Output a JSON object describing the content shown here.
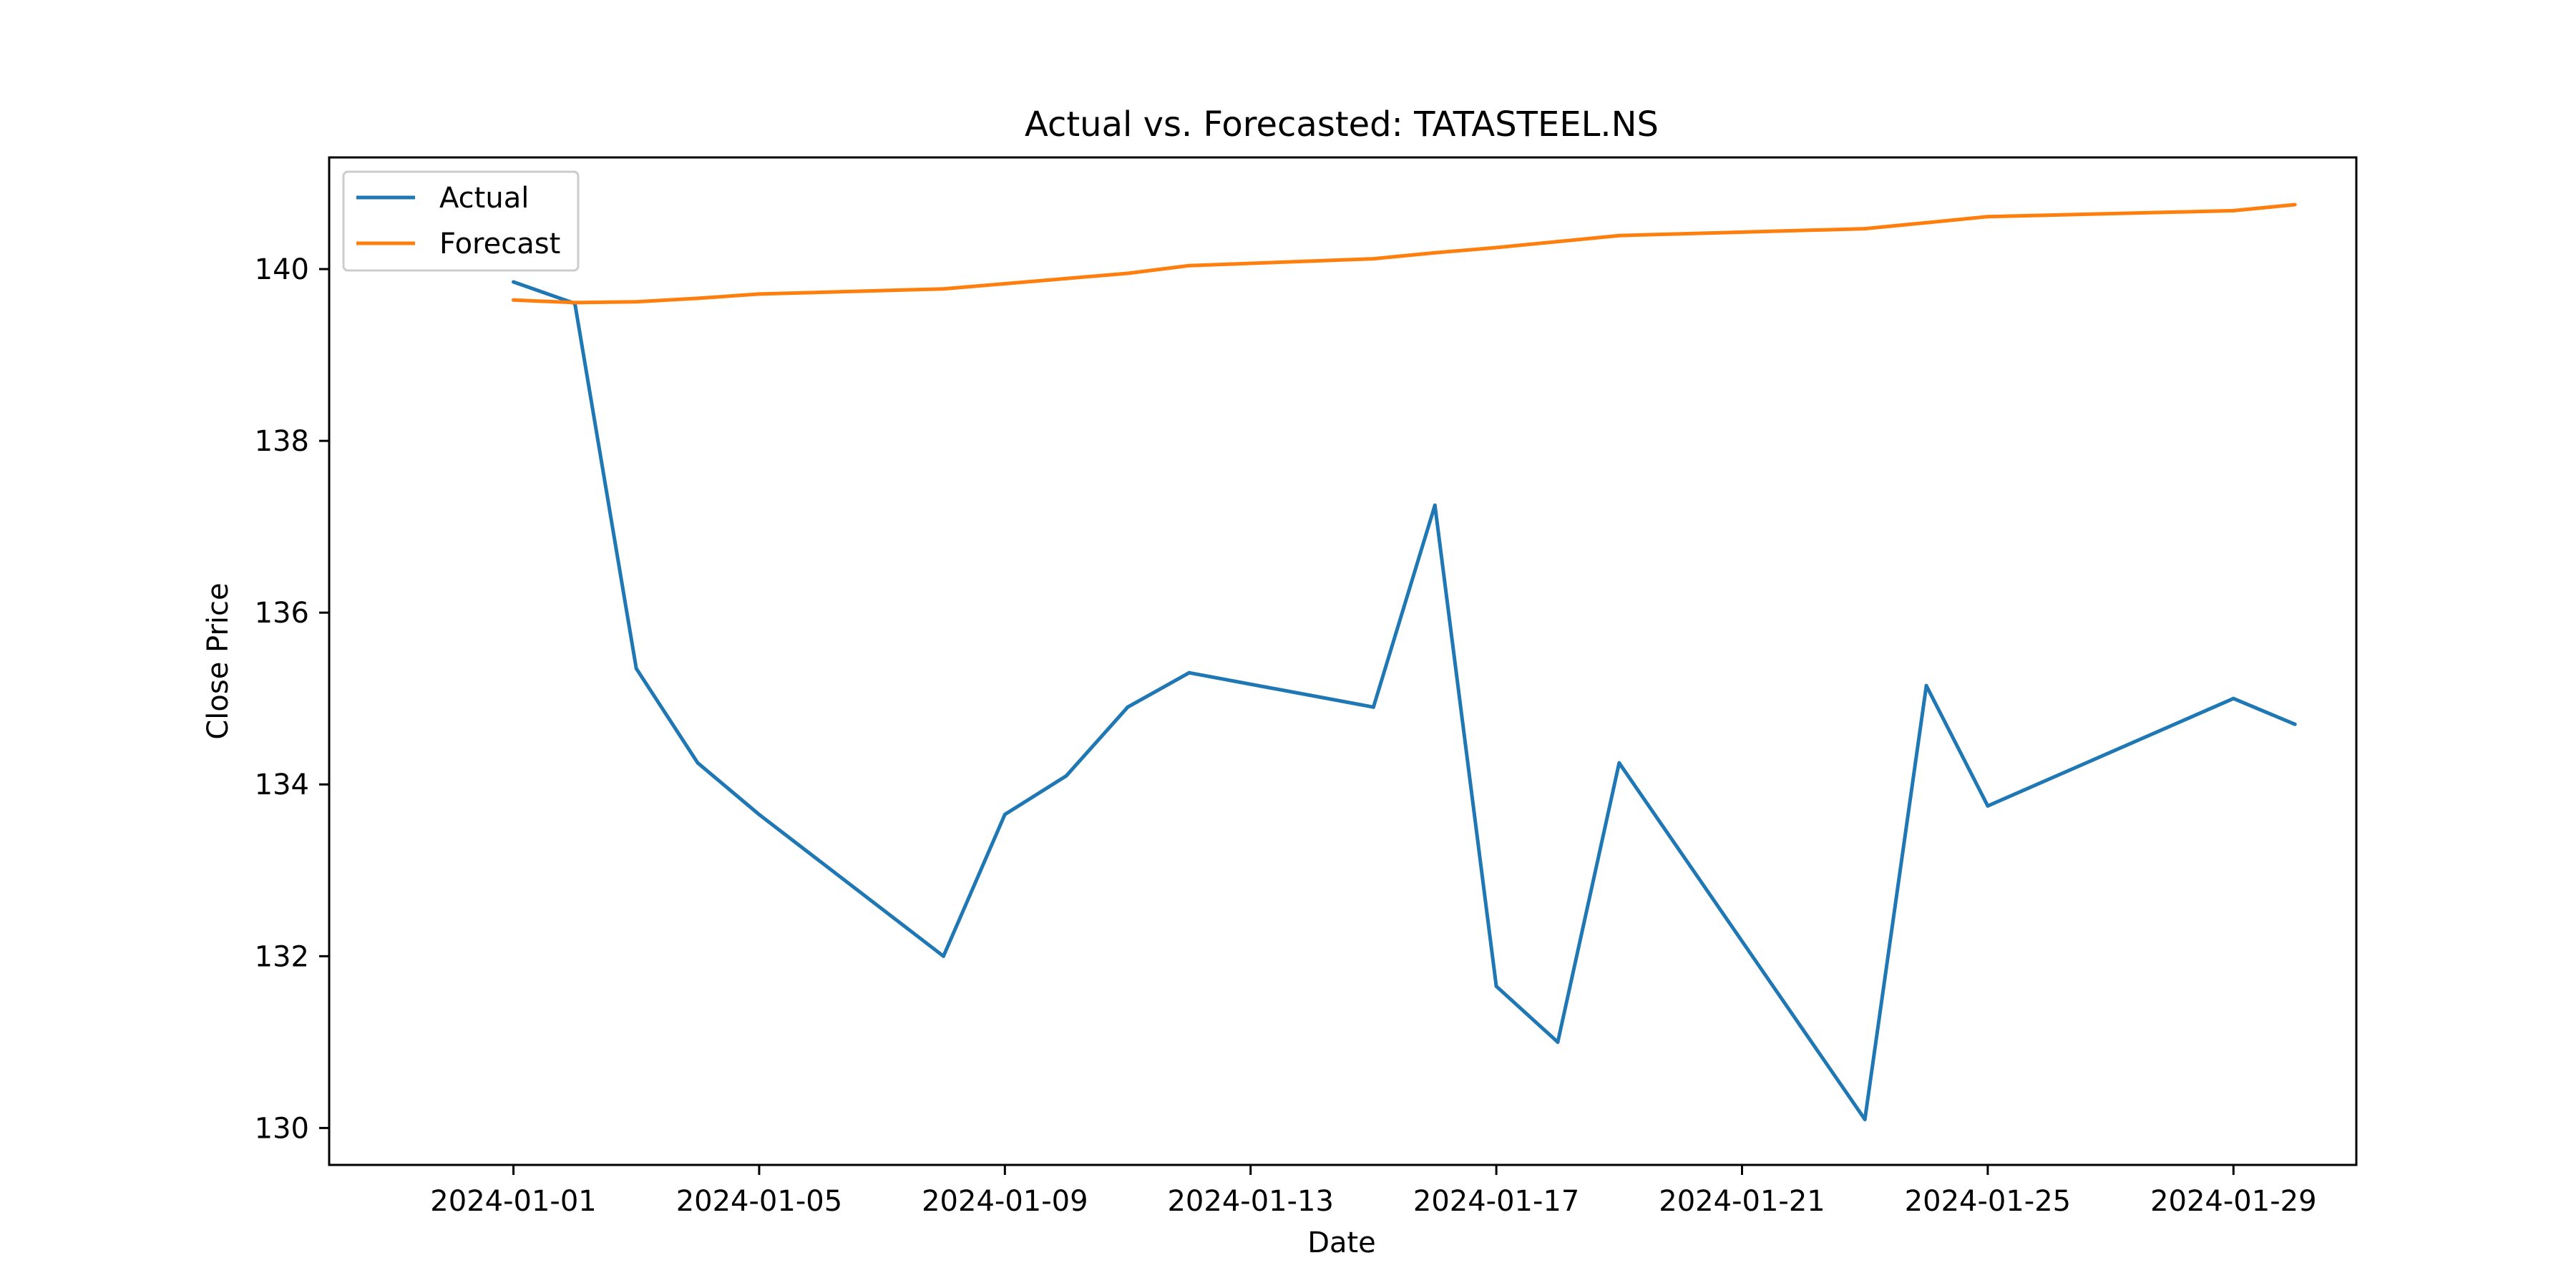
{
  "chart_data": {
    "type": "line",
    "title": "Actual vs. Forecasted: TATASTEEL.NS",
    "xlabel": "Date",
    "ylabel": "Close Price",
    "x_type": "date",
    "xlim": [
      "2023-12-29",
      "2024-01-31"
    ],
    "ylim": [
      129.57,
      141.3
    ],
    "x_ticks": [
      "2024-01-01",
      "2024-01-05",
      "2024-01-09",
      "2024-01-13",
      "2024-01-17",
      "2024-01-21",
      "2024-01-25",
      "2024-01-29"
    ],
    "y_ticks": [
      130,
      132,
      134,
      136,
      138,
      140
    ],
    "grid": false,
    "legend_position": "upper-left",
    "series": [
      {
        "name": "Actual",
        "color": "#1f77b4",
        "points": [
          {
            "x": "2024-01-01",
            "y": 139.85
          },
          {
            "x": "2024-01-02",
            "y": 139.6
          },
          {
            "x": "2024-01-03",
            "y": 135.35
          },
          {
            "x": "2024-01-04",
            "y": 134.25
          },
          {
            "x": "2024-01-05",
            "y": 133.65
          },
          {
            "x": "2024-01-08",
            "y": 132.0
          },
          {
            "x": "2024-01-09",
            "y": 133.65
          },
          {
            "x": "2024-01-10",
            "y": 134.1
          },
          {
            "x": "2024-01-11",
            "y": 134.9
          },
          {
            "x": "2024-01-12",
            "y": 135.3
          },
          {
            "x": "2024-01-15",
            "y": 134.9
          },
          {
            "x": "2024-01-16",
            "y": 137.25
          },
          {
            "x": "2024-01-17",
            "y": 131.65
          },
          {
            "x": "2024-01-18",
            "y": 131.0
          },
          {
            "x": "2024-01-19",
            "y": 134.25
          },
          {
            "x": "2024-01-23",
            "y": 130.1
          },
          {
            "x": "2024-01-24",
            "y": 135.15
          },
          {
            "x": "2024-01-25",
            "y": 133.75
          },
          {
            "x": "2024-01-29",
            "y": 135.0
          },
          {
            "x": "2024-01-30",
            "y": 134.7
          }
        ]
      },
      {
        "name": "Forecast",
        "color": "#ff7f0e",
        "points": [
          {
            "x": "2024-01-01",
            "y": 139.64
          },
          {
            "x": "2024-01-02",
            "y": 139.61
          },
          {
            "x": "2024-01-03",
            "y": 139.62
          },
          {
            "x": "2024-01-04",
            "y": 139.66
          },
          {
            "x": "2024-01-05",
            "y": 139.71
          },
          {
            "x": "2024-01-08",
            "y": 139.77
          },
          {
            "x": "2024-01-09",
            "y": 139.83
          },
          {
            "x": "2024-01-10",
            "y": 139.89
          },
          {
            "x": "2024-01-11",
            "y": 139.95
          },
          {
            "x": "2024-01-12",
            "y": 140.04
          },
          {
            "x": "2024-01-15",
            "y": 140.12
          },
          {
            "x": "2024-01-16",
            "y": 140.19
          },
          {
            "x": "2024-01-17",
            "y": 140.25
          },
          {
            "x": "2024-01-18",
            "y": 140.32
          },
          {
            "x": "2024-01-19",
            "y": 140.39
          },
          {
            "x": "2024-01-23",
            "y": 140.47
          },
          {
            "x": "2024-01-24",
            "y": 140.54
          },
          {
            "x": "2024-01-25",
            "y": 140.61
          },
          {
            "x": "2024-01-29",
            "y": 140.68
          },
          {
            "x": "2024-01-30",
            "y": 140.75
          }
        ]
      }
    ]
  }
}
